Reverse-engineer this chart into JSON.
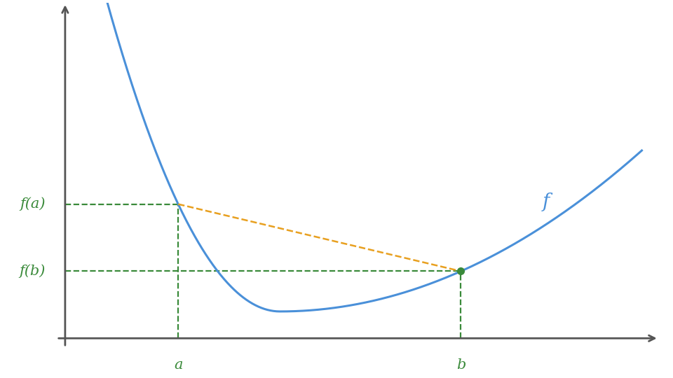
{
  "background_color": "#ffffff",
  "curve_color": "#4a90d9",
  "curve_linewidth": 2.2,
  "dashed_green_color": "#3a8a3a",
  "dashed_orange_color": "#e8a020",
  "label_color_green": "#3a8a3a",
  "label_color_blue": "#4a90d9",
  "axis_color": "#555555",
  "a_x": 2.0,
  "b_x": 7.0,
  "func_a": 3.0,
  "func_b": 1.5,
  "func_min_x": 3.8,
  "func_min_y": 0.6,
  "x_min": -0.3,
  "x_max": 10.5,
  "y_min": -0.8,
  "y_max": 7.5,
  "f_label": "f",
  "a_label": "a",
  "b_label": "b",
  "fa_label": "f(a)",
  "fb_label": "f(b)",
  "font_size_labels": 15,
  "dot_color": "#3a8a3a",
  "dot_size": 7
}
